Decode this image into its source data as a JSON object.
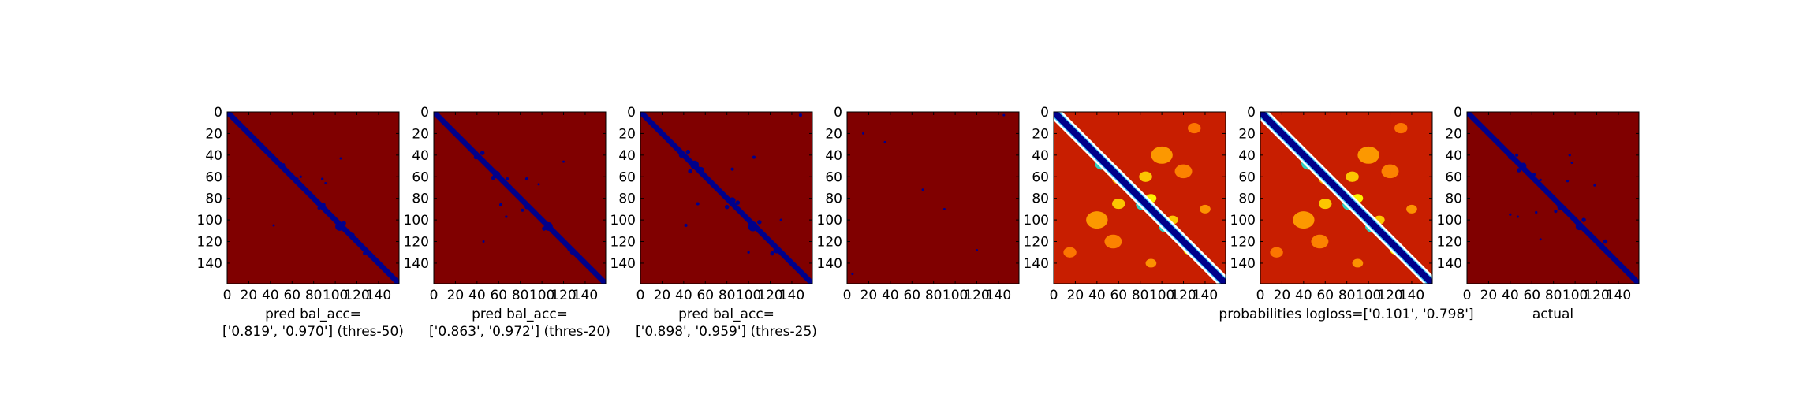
{
  "chart_data": [
    {
      "type": "heatmap",
      "title": "",
      "xlabel_lines": [
        "pred bal_acc=",
        "['0.819', '0.970'] (thres-50)"
      ],
      "xlim": [
        0,
        159
      ],
      "ylim": [
        159,
        0
      ],
      "xticks": [
        "0",
        "20",
        "40",
        "60",
        "80",
        "100",
        "120",
        "140"
      ],
      "yticks": [
        "0",
        "20",
        "40",
        "60",
        "80",
        "100",
        "120",
        "140"
      ],
      "colormap": "jet",
      "background_color": "#800000",
      "contact_color": "#00008b",
      "diagonal_band_width": 5,
      "contacts": [
        {
          "x": 50,
          "y": 50,
          "r": 2
        },
        {
          "x": 48,
          "y": 47,
          "r": 1.5
        },
        {
          "x": 52,
          "y": 49,
          "r": 1.5
        },
        {
          "x": 89,
          "y": 86,
          "r": 2
        },
        {
          "x": 85,
          "y": 89,
          "r": 1.5
        },
        {
          "x": 104,
          "y": 106,
          "r": 4
        },
        {
          "x": 108,
          "y": 103,
          "r": 2
        },
        {
          "x": 116,
          "y": 114,
          "r": 2
        },
        {
          "x": 120,
          "y": 118,
          "r": 1.5
        },
        {
          "x": 127,
          "y": 131,
          "r": 1.5
        },
        {
          "x": 68,
          "y": 60,
          "r": 1.2
        },
        {
          "x": 65,
          "y": 62,
          "r": 1
        },
        {
          "x": 105,
          "y": 43,
          "r": 1
        },
        {
          "x": 43,
          "y": 105,
          "r": 1
        },
        {
          "x": 88,
          "y": 62,
          "r": 1.2
        },
        {
          "x": 91,
          "y": 66,
          "r": 1
        }
      ]
    },
    {
      "type": "heatmap",
      "title": "",
      "xlabel_lines": [
        "pred bal_acc=",
        "['0.863', '0.972'] (thres-20)"
      ],
      "xlim": [
        0,
        159
      ],
      "ylim": [
        159,
        0
      ],
      "xticks": [
        "0",
        "20",
        "40",
        "60",
        "80",
        "100",
        "120",
        "140"
      ],
      "yticks": [
        "0",
        "20",
        "40",
        "60",
        "80",
        "100",
        "120",
        "140"
      ],
      "colormap": "jet",
      "background_color": "#800000",
      "contact_color": "#00008b",
      "diagonal_band_width": 5,
      "contacts": [
        {
          "x": 39,
          "y": 42,
          "r": 2
        },
        {
          "x": 45,
          "y": 38,
          "r": 2
        },
        {
          "x": 58,
          "y": 58,
          "r": 3.5
        },
        {
          "x": 55,
          "y": 61,
          "r": 2
        },
        {
          "x": 68,
          "y": 62,
          "r": 1.5
        },
        {
          "x": 86,
          "y": 88,
          "r": 2
        },
        {
          "x": 82,
          "y": 91,
          "r": 1.5
        },
        {
          "x": 106,
          "y": 106,
          "r": 4
        },
        {
          "x": 102,
          "y": 108,
          "r": 2
        },
        {
          "x": 128,
          "y": 130,
          "r": 2
        },
        {
          "x": 125,
          "y": 127,
          "r": 1.5
        },
        {
          "x": 86,
          "y": 62,
          "r": 1.5
        },
        {
          "x": 62,
          "y": 86,
          "r": 1.5
        },
        {
          "x": 67,
          "y": 97,
          "r": 1.2
        },
        {
          "x": 97,
          "y": 67,
          "r": 1
        },
        {
          "x": 120,
          "y": 46,
          "r": 1
        },
        {
          "x": 46,
          "y": 120,
          "r": 1
        }
      ]
    },
    {
      "type": "heatmap",
      "title": "",
      "xlabel_lines": [
        "pred bal_acc=",
        "['0.898', '0.959'] (thres-25)"
      ],
      "xlim": [
        0,
        159
      ],
      "ylim": [
        159,
        0
      ],
      "xticks": [
        "0",
        "20",
        "40",
        "60",
        "80",
        "100",
        "120",
        "140"
      ],
      "yticks": [
        "0",
        "20",
        "40",
        "60",
        "80",
        "100",
        "120",
        "140"
      ],
      "colormap": "jet",
      "background_color": "#800000",
      "contact_color": "#00008b",
      "diagonal_band_width": 5,
      "contacts": [
        {
          "x": 38,
          "y": 40,
          "r": 2.5
        },
        {
          "x": 44,
          "y": 37,
          "r": 2
        },
        {
          "x": 50,
          "y": 49,
          "r": 4
        },
        {
          "x": 56,
          "y": 54,
          "r": 3
        },
        {
          "x": 46,
          "y": 55,
          "r": 2
        },
        {
          "x": 85,
          "y": 82,
          "r": 3
        },
        {
          "x": 80,
          "y": 88,
          "r": 2
        },
        {
          "x": 90,
          "y": 84,
          "r": 2
        },
        {
          "x": 104,
          "y": 106,
          "r": 4.5
        },
        {
          "x": 110,
          "y": 102,
          "r": 2
        },
        {
          "x": 126,
          "y": 128,
          "r": 3
        },
        {
          "x": 122,
          "y": 131,
          "r": 2
        },
        {
          "x": 105,
          "y": 42,
          "r": 1.5
        },
        {
          "x": 42,
          "y": 105,
          "r": 1.5
        },
        {
          "x": 85,
          "y": 53,
          "r": 1.5
        },
        {
          "x": 53,
          "y": 85,
          "r": 1.5
        },
        {
          "x": 130,
          "y": 100,
          "r": 1.2
        },
        {
          "x": 100,
          "y": 130,
          "r": 1.2
        },
        {
          "x": 148,
          "y": 3,
          "r": 1.5
        }
      ]
    },
    {
      "type": "heatmap",
      "title": "",
      "xlabel_lines": [],
      "xlim": [
        0,
        159
      ],
      "ylim": [
        159,
        0
      ],
      "xticks": [
        "0",
        "20",
        "40",
        "60",
        "80",
        "100",
        "120",
        "140"
      ],
      "yticks": [
        "0",
        "20",
        "40",
        "60",
        "80",
        "100",
        "120",
        "140"
      ],
      "colormap": "jet",
      "background_color": "#800000",
      "contact_color": "#00008b",
      "diagonal_band_width": 0,
      "contacts": [
        {
          "x": 15,
          "y": 20,
          "r": 0.8
        },
        {
          "x": 35,
          "y": 28,
          "r": 0.8
        },
        {
          "x": 70,
          "y": 72,
          "r": 0.8
        },
        {
          "x": 90,
          "y": 90,
          "r": 0.8
        },
        {
          "x": 120,
          "y": 128,
          "r": 0.8
        },
        {
          "x": 145,
          "y": 3,
          "r": 0.8
        },
        {
          "x": 5,
          "y": 150,
          "r": 0.8
        }
      ]
    },
    {
      "type": "heatmap",
      "title": "",
      "xlabel_lines": [],
      "xlim": [
        0,
        159
      ],
      "ylim": [
        159,
        0
      ],
      "xticks": [
        "0",
        "20",
        "40",
        "60",
        "80",
        "100",
        "120",
        "140"
      ],
      "yticks": [
        "0",
        "20",
        "40",
        "60",
        "80",
        "100",
        "120",
        "140"
      ],
      "colormap": "jet",
      "background_color": "#c81e00",
      "contact_color": "#00008b",
      "diagonal_band_width": 6,
      "blobs": [
        {
          "x": 45,
          "y": 48,
          "r": 7,
          "color": "#2ad7c8"
        },
        {
          "x": 53,
          "y": 55,
          "r": 5,
          "color": "#ffff00"
        },
        {
          "x": 40,
          "y": 40,
          "r": 6,
          "color": "#ff9f00"
        },
        {
          "x": 60,
          "y": 62,
          "r": 6,
          "color": "#ffb400"
        },
        {
          "x": 82,
          "y": 86,
          "r": 6,
          "color": "#2ad7c8"
        },
        {
          "x": 90,
          "y": 80,
          "r": 5,
          "color": "#ffff00"
        },
        {
          "x": 104,
          "y": 106,
          "r": 7,
          "color": "#2ad7c8"
        },
        {
          "x": 110,
          "y": 100,
          "r": 5,
          "color": "#ffd000"
        },
        {
          "x": 125,
          "y": 128,
          "r": 5,
          "color": "#ffff00"
        },
        {
          "x": 100,
          "y": 40,
          "r": 10,
          "color": "#ff9f00"
        },
        {
          "x": 40,
          "y": 100,
          "r": 10,
          "color": "#ff9f00"
        },
        {
          "x": 120,
          "y": 55,
          "r": 8,
          "color": "#ff8800"
        },
        {
          "x": 55,
          "y": 120,
          "r": 8,
          "color": "#ff8800"
        },
        {
          "x": 85,
          "y": 60,
          "r": 6,
          "color": "#ffd000"
        },
        {
          "x": 60,
          "y": 85,
          "r": 6,
          "color": "#ffd000"
        },
        {
          "x": 130,
          "y": 15,
          "r": 6,
          "color": "#ff7a00"
        },
        {
          "x": 15,
          "y": 130,
          "r": 6,
          "color": "#ff7a00"
        },
        {
          "x": 140,
          "y": 90,
          "r": 5,
          "color": "#ff9900"
        },
        {
          "x": 90,
          "y": 140,
          "r": 5,
          "color": "#ff9900"
        }
      ]
    },
    {
      "type": "heatmap",
      "title": "",
      "xlabel_lines": [
        "probabilities logloss=['0.101', '0.798']"
      ],
      "xlim": [
        0,
        159
      ],
      "ylim": [
        159,
        0
      ],
      "xticks": [
        "0",
        "20",
        "40",
        "60",
        "80",
        "100",
        "120",
        "140"
      ],
      "yticks": [
        "0",
        "20",
        "40",
        "60",
        "80",
        "100",
        "120",
        "140"
      ],
      "colormap": "jet",
      "background_color": "#c81e00",
      "contact_color": "#00008b",
      "diagonal_band_width": 6,
      "blobs": [
        {
          "x": 45,
          "y": 48,
          "r": 7,
          "color": "#2ad7c8"
        },
        {
          "x": 53,
          "y": 55,
          "r": 5,
          "color": "#ffff00"
        },
        {
          "x": 40,
          "y": 40,
          "r": 6,
          "color": "#ff9f00"
        },
        {
          "x": 60,
          "y": 62,
          "r": 6,
          "color": "#ffb400"
        },
        {
          "x": 82,
          "y": 86,
          "r": 6,
          "color": "#2ad7c8"
        },
        {
          "x": 90,
          "y": 80,
          "r": 5,
          "color": "#ffff00"
        },
        {
          "x": 104,
          "y": 106,
          "r": 7,
          "color": "#2ad7c8"
        },
        {
          "x": 110,
          "y": 100,
          "r": 5,
          "color": "#ffd000"
        },
        {
          "x": 125,
          "y": 128,
          "r": 5,
          "color": "#ffff00"
        },
        {
          "x": 100,
          "y": 40,
          "r": 10,
          "color": "#ff9f00"
        },
        {
          "x": 40,
          "y": 100,
          "r": 10,
          "color": "#ff9f00"
        },
        {
          "x": 120,
          "y": 55,
          "r": 8,
          "color": "#ff8800"
        },
        {
          "x": 55,
          "y": 120,
          "r": 8,
          "color": "#ff8800"
        },
        {
          "x": 85,
          "y": 60,
          "r": 6,
          "color": "#ffd000"
        },
        {
          "x": 60,
          "y": 85,
          "r": 6,
          "color": "#ffd000"
        },
        {
          "x": 130,
          "y": 15,
          "r": 6,
          "color": "#ff7a00"
        },
        {
          "x": 15,
          "y": 130,
          "r": 6,
          "color": "#ff7a00"
        },
        {
          "x": 140,
          "y": 90,
          "r": 5,
          "color": "#ff9900"
        },
        {
          "x": 90,
          "y": 140,
          "r": 5,
          "color": "#ff9900"
        }
      ]
    },
    {
      "type": "heatmap",
      "title": "",
      "xlabel_lines": [
        "actual"
      ],
      "xlim": [
        0,
        159
      ],
      "ylim": [
        159,
        0
      ],
      "xticks": [
        "0",
        "20",
        "40",
        "60",
        "80",
        "100",
        "120",
        "140"
      ],
      "yticks": [
        "0",
        "20",
        "40",
        "60",
        "80",
        "100",
        "120",
        "140"
      ],
      "colormap": "jet",
      "background_color": "#800000",
      "contact_color": "#00008b",
      "diagonal_band_width": 5,
      "contacts": [
        {
          "x": 40,
          "y": 42,
          "r": 2
        },
        {
          "x": 46,
          "y": 40,
          "r": 1.5
        },
        {
          "x": 52,
          "y": 50,
          "r": 3
        },
        {
          "x": 48,
          "y": 54,
          "r": 2
        },
        {
          "x": 62,
          "y": 58,
          "r": 1.5
        },
        {
          "x": 68,
          "y": 63,
          "r": 1.2
        },
        {
          "x": 86,
          "y": 88,
          "r": 2.5
        },
        {
          "x": 82,
          "y": 92,
          "r": 1.5
        },
        {
          "x": 104,
          "y": 106,
          "r": 3.5
        },
        {
          "x": 108,
          "y": 100,
          "r": 2
        },
        {
          "x": 124,
          "y": 124,
          "r": 3
        },
        {
          "x": 128,
          "y": 120,
          "r": 2
        },
        {
          "x": 93,
          "y": 64,
          "r": 1.2
        },
        {
          "x": 64,
          "y": 93,
          "r": 1.2
        },
        {
          "x": 97,
          "y": 47,
          "r": 1
        },
        {
          "x": 47,
          "y": 97,
          "r": 1
        },
        {
          "x": 40,
          "y": 95,
          "r": 1.2
        },
        {
          "x": 95,
          "y": 40,
          "r": 1.2
        },
        {
          "x": 118,
          "y": 68,
          "r": 1
        },
        {
          "x": 68,
          "y": 118,
          "r": 1
        }
      ]
    }
  ]
}
